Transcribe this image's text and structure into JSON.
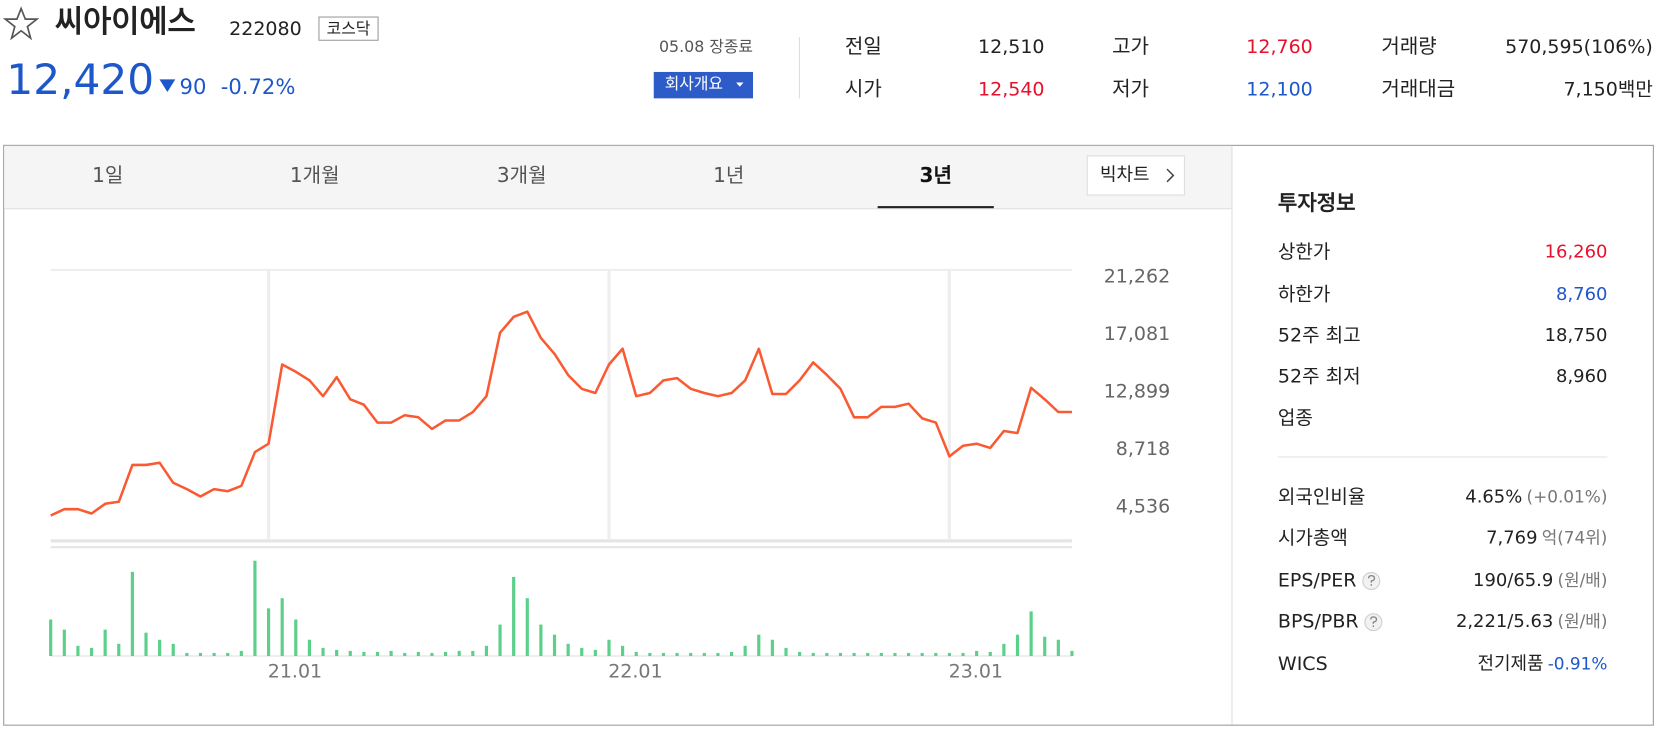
{
  "header": {
    "name": "씨아이에스",
    "code": "222080",
    "market": "코스닥",
    "price": "12,420",
    "change": "90",
    "change_rate": "-0.72%",
    "status": "05.08 장종료",
    "company_button": "회사개요"
  },
  "quote": [
    {
      "label": "전일",
      "value": "12,510"
    },
    {
      "label": "시가",
      "value": "12,540",
      "color": "#e8112d"
    },
    {
      "label": "고가",
      "value": "12,760",
      "color": "#e8112d"
    },
    {
      "label": "저가",
      "value": "12,100",
      "color": "#1d57c9"
    },
    {
      "label": "거래량",
      "value": "570,595(106%)"
    },
    {
      "label": "거래대금",
      "value": "7,150백만"
    }
  ],
  "tabs": {
    "items": [
      "1일",
      "1개월",
      "3개월",
      "1년",
      "3년"
    ],
    "selected": 4,
    "big_chart": "빅차트"
  },
  "chart_data": [
    {
      "type": "line",
      "color": "#fa5a32",
      "values": [
        3920,
        4380,
        4380,
        4070,
        4770,
        4920,
        7600,
        7600,
        7760,
        6300,
        5840,
        5300,
        5840,
        5690,
        6070,
        8530,
        9140,
        14890,
        14360,
        13740,
        12590,
        13970,
        12360,
        11980,
        10670,
        10670,
        11210,
        11060,
        10210,
        10830,
        10830,
        11440,
        12590,
        17200,
        18350,
        18730,
        16810,
        15660,
        14130,
        13130,
        12820,
        14890,
        16040,
        12590,
        12820,
        13740,
        13900,
        13130,
        12820,
        12590,
        12820,
        13740,
        16040,
        12750,
        12750,
        13740,
        15050,
        14130,
        13130,
        11060,
        11060,
        11820,
        11820,
        12050,
        10980,
        10670,
        8220,
        8990,
        9140,
        8830,
        10060,
        9910,
        13200,
        12360,
        11440,
        11440
      ],
      "xlim": [
        0,
        75
      ],
      "xticks": [
        {
          "value": 16,
          "label": "21.01"
        },
        {
          "value": 41,
          "label": "22.01"
        },
        {
          "value": 66,
          "label": "23.01"
        }
      ],
      "ylim": [
        2234,
        21798
      ],
      "yticks": [
        {
          "value": 4536,
          "label": "4,536"
        },
        {
          "value": 8718,
          "label": "8,718"
        },
        {
          "value": 12899,
          "label": "12,899"
        },
        {
          "value": 17081,
          "label": "17,081"
        },
        {
          "value": 21262,
          "label": "21,262"
        }
      ],
      "grid": true
    },
    {
      "type": "bar",
      "color": "#5ccf8a",
      "values": [
        36,
        26,
        10,
        8,
        26,
        12,
        83,
        23,
        16,
        12,
        3,
        3,
        3,
        3,
        5,
        94,
        47,
        57,
        36,
        16,
        8,
        6,
        5,
        4,
        4,
        5,
        3,
        4,
        3,
        4,
        5,
        5,
        10,
        31,
        78,
        57,
        31,
        21,
        12,
        8,
        6,
        16,
        10,
        4,
        3,
        3,
        3,
        3,
        3,
        3,
        4,
        10,
        21,
        16,
        8,
        4,
        3,
        3,
        3,
        3,
        3,
        3,
        3,
        3,
        3,
        3,
        3,
        3,
        5,
        4,
        12,
        21,
        44,
        19,
        16,
        5
      ],
      "xlim": [
        0,
        75
      ],
      "ylim": [
        0,
        100
      ]
    }
  ],
  "invest": {
    "title": "투자정보",
    "rows": [
      {
        "label": "상한가",
        "value": "16,260",
        "color": "#e8112d"
      },
      {
        "label": "하한가",
        "value": "8,760",
        "color": "#1d57c9"
      },
      {
        "label": "52주 최고",
        "value": "18,750"
      },
      {
        "label": "52주 최저",
        "value": "8,960"
      },
      {
        "label": "업종"
      },
      {
        "label": "외국인비율",
        "value": "4.65%",
        "note": "(+0.01%)"
      },
      {
        "label": "시가총액",
        "value": "7,769",
        "note": "억(74위)"
      },
      {
        "label": "EPS/PER",
        "help": true,
        "value": "190/65.9",
        "note": "(원/배)"
      },
      {
        "label": "BPS/PBR",
        "help": true,
        "value": "2,221/5.63",
        "note": "(원/배)"
      },
      {
        "label": "WICS",
        "value": "전기제품",
        "note": "-0.91%",
        "note_color": "#1d57c9"
      }
    ]
  }
}
